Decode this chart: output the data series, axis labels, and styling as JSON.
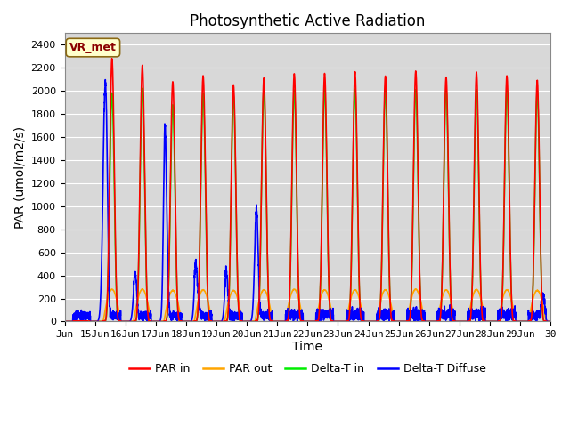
{
  "title": "Photosynthetic Active Radiation",
  "ylabel": "PAR (umol/m2/s)",
  "xlabel": "Time",
  "annotation": "VR_met",
  "legend": [
    "PAR in",
    "PAR out",
    "Delta-T in",
    "Delta-T Diffuse"
  ],
  "colors": {
    "PAR_in": "#ff0000",
    "PAR_out": "#ffa500",
    "Delta_T_in": "#00ee00",
    "Delta_T_Diffuse": "#0000ff"
  },
  "x_start": 14.0,
  "x_end": 30.0,
  "xtick_positions": [
    14,
    15,
    16,
    17,
    18,
    19,
    20,
    21,
    22,
    23,
    24,
    25,
    26,
    27,
    28,
    29,
    30
  ],
  "xtick_labels": [
    "Jun",
    "15Jun",
    "16Jun",
    "17Jun",
    "18Jun",
    "19Jun",
    "20Jun",
    "21Jun",
    "22Jun",
    "23Jun",
    "24Jun",
    "25Jun",
    "26Jun",
    "27Jun",
    "28Jun",
    "29Jun",
    "30"
  ],
  "ylim": [
    0,
    2500
  ],
  "ytick_positions": [
    0,
    200,
    400,
    600,
    800,
    1000,
    1200,
    1400,
    1600,
    1800,
    2000,
    2200,
    2400
  ],
  "background_color": "#d8d8d8",
  "fig_background": "#ffffff",
  "grid_color": "#ffffff",
  "title_fontsize": 12,
  "axis_fontsize": 10,
  "tick_fontsize": 8,
  "legend_fontsize": 9,
  "linewidth": 1.2
}
